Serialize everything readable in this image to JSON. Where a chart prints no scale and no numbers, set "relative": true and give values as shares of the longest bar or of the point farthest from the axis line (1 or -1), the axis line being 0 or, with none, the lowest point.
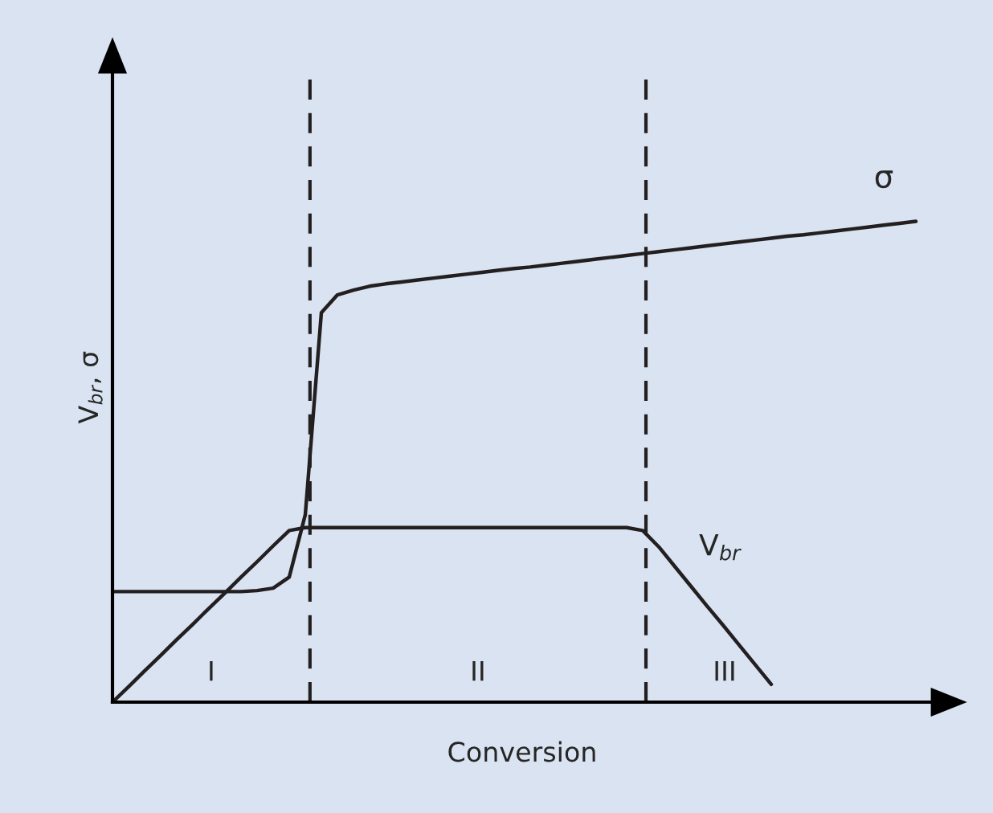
{
  "chart_data": {
    "type": "line",
    "relative": true,
    "xlabel": "Conversion",
    "ylabel": "V$_{br}$, σ",
    "categories": [
      null,
      null,
      null,
      null,
      null,
      null,
      null,
      null,
      null,
      null,
      null,
      null,
      null,
      null,
      null,
      null,
      null,
      null,
      null,
      null,
      null,
      null,
      null,
      null,
      null,
      null,
      null,
      null,
      null,
      null,
      null,
      null,
      null,
      null,
      null,
      null,
      null,
      null,
      null,
      null,
      null,
      null,
      null,
      null,
      null,
      null,
      null,
      null,
      null,
      null,
      null,
      null
    ],
    "series": [
      {
        "name": "σ",
        "color": "#231f20",
        "values": [
          0.23,
          0.23,
          0.23,
          0.23,
          0.23,
          0.23,
          0.23,
          0.23,
          0.23,
          0.232,
          0.237,
          0.26,
          0.39,
          0.81,
          0.847,
          0.857,
          0.865,
          0.87,
          0.874,
          0.878,
          0.882,
          0.886,
          0.89,
          0.894,
          0.898,
          0.902,
          0.905,
          0.909,
          0.913,
          0.917,
          0.921,
          0.925,
          0.929,
          0.933,
          0.937,
          0.941,
          0.945,
          0.949,
          0.953,
          0.957,
          0.961,
          0.965,
          0.969,
          0.972,
          0.976,
          0.98,
          0.984,
          0.988,
          0.992,
          0.996,
          1.0,
          null
        ]
      },
      {
        "name": "V$_{br}$",
        "color": "#231f20",
        "values": [
          0,
          0.032,
          0.065,
          0.097,
          0.13,
          0.162,
          0.195,
          0.227,
          0.26,
          0.292,
          0.325,
          0.357,
          0.363,
          0.363,
          0.363,
          0.363,
          0.363,
          0.363,
          0.363,
          0.363,
          0.363,
          0.363,
          0.363,
          0.363,
          0.363,
          0.363,
          0.363,
          0.363,
          0.363,
          0.363,
          0.363,
          0.363,
          0.363,
          0.357,
          0.323,
          0.282,
          0.241,
          0.2,
          0.16,
          0.119,
          0.078,
          0.037,
          null,
          null,
          null,
          null,
          null,
          null,
          null,
          null,
          null,
          null
        ]
      }
    ],
    "annotations": [
      "I",
      "II",
      "III"
    ]
  }
}
